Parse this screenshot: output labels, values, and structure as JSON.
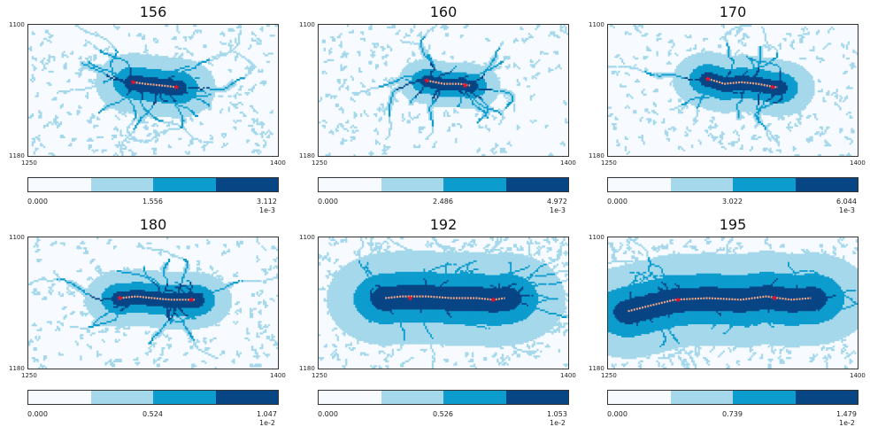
{
  "chart_data": {
    "type": "heatmap",
    "x_range": [
      1250,
      1400
    ],
    "y_range": [
      1100,
      1180
    ],
    "xticks": [
      "1250",
      "1400"
    ],
    "yticks": [
      "1100",
      "1180"
    ],
    "colors": [
      "#f7fbff",
      "#a6d8ec",
      "#0c9ccd",
      "#084585"
    ],
    "panels": [
      {
        "title": "156",
        "cbar_ticks": [
          "0.000",
          "1.556",
          "3.112"
        ],
        "cbar_exponent": "1e-3",
        "path": [
          [
            1313,
            1135
          ],
          [
            1320,
            1136
          ],
          [
            1330,
            1137
          ],
          [
            1339,
            1138
          ]
        ],
        "stars": [
          [
            1313,
            1135
          ],
          [
            1339,
            1138
          ]
        ],
        "spread": 0.55
      },
      {
        "title": "160",
        "cbar_ticks": [
          "0.000",
          "2.486",
          "4.972"
        ],
        "cbar_exponent": "1e-3",
        "path": [
          [
            1315,
            1134
          ],
          [
            1325,
            1136
          ],
          [
            1335,
            1136
          ],
          [
            1341,
            1137
          ]
        ],
        "stars": [
          [
            1315,
            1134
          ],
          [
            1338,
            1137
          ]
        ],
        "spread": 0.35
      },
      {
        "title": "170",
        "cbar_ticks": [
          "0.000",
          "3.022",
          "6.044"
        ],
        "cbar_exponent": "1e-3",
        "path": [
          [
            1310,
            1133
          ],
          [
            1320,
            1136
          ],
          [
            1330,
            1135
          ],
          [
            1340,
            1136
          ],
          [
            1350,
            1138
          ],
          [
            1352,
            1138
          ]
        ],
        "stars": [
          [
            1310,
            1133
          ],
          [
            1349,
            1138
          ]
        ],
        "spread": 0.5
      },
      {
        "title": "180",
        "cbar_ticks": [
          "0.000",
          "0.524",
          "1.047"
        ],
        "cbar_exponent": "1e-2",
        "path": [
          [
            1305,
            1137
          ],
          [
            1315,
            1136
          ],
          [
            1325,
            1137
          ],
          [
            1335,
            1138
          ],
          [
            1342,
            1138
          ],
          [
            1350,
            1138
          ]
        ],
        "stars": [
          [
            1305,
            1137
          ],
          [
            1348,
            1138
          ]
        ],
        "spread": 0.5
      },
      {
        "title": "192",
        "cbar_ticks": [
          "0.000",
          "0.526",
          "1.053"
        ],
        "cbar_exponent": "1e-2",
        "path": [
          [
            1290,
            1137
          ],
          [
            1300,
            1136
          ],
          [
            1315,
            1136
          ],
          [
            1330,
            1137
          ],
          [
            1345,
            1137
          ],
          [
            1355,
            1138
          ],
          [
            1362,
            1137
          ]
        ],
        "stars": [
          [
            1305,
            1137
          ],
          [
            1355,
            1138
          ]
        ],
        "spread": 1.0
      },
      {
        "title": "195",
        "cbar_ticks": [
          "0.000",
          "0.739",
          "1.479"
        ],
        "cbar_exponent": "1e-2",
        "path": [
          [
            1262,
            1145
          ],
          [
            1270,
            1143
          ],
          [
            1290,
            1138
          ],
          [
            1310,
            1137
          ],
          [
            1330,
            1138
          ],
          [
            1345,
            1136
          ],
          [
            1360,
            1138
          ],
          [
            1372,
            1137
          ]
        ],
        "stars": [
          [
            1292,
            1138
          ],
          [
            1350,
            1137
          ]
        ],
        "spread": 1.0
      }
    ]
  }
}
